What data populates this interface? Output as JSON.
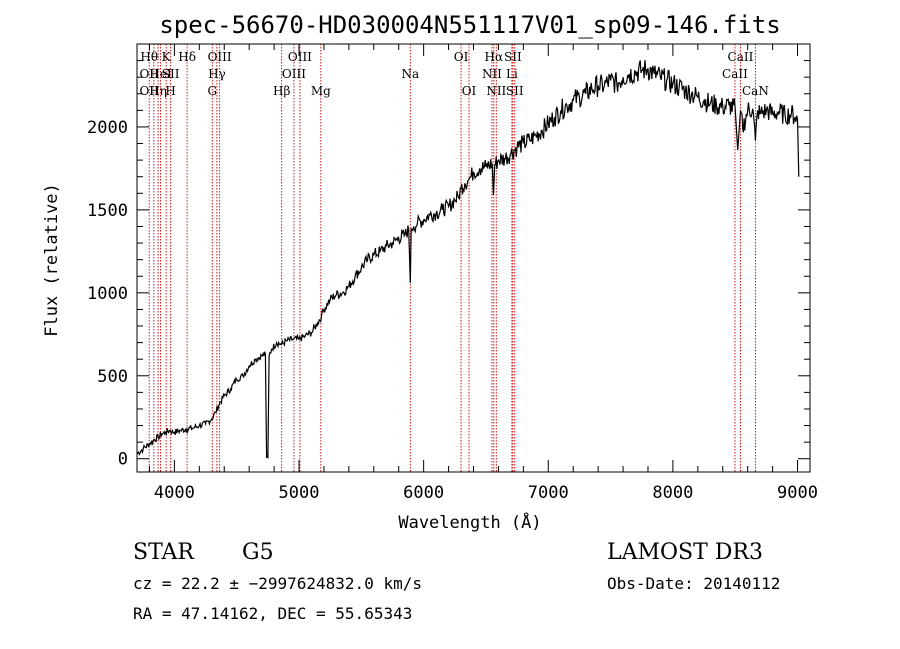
{
  "chart_data": {
    "type": "line",
    "title": "spec-56670-HD030004N551117V01_sp09-146.fits",
    "xlabel": "Wavelength (Å)",
    "ylabel": "Flux (relative)",
    "xlim": [
      3700,
      9100
    ],
    "ylim": [
      -80,
      2500
    ],
    "xticks": [
      4000,
      5000,
      6000,
      7000,
      8000,
      9000
    ],
    "yticks": [
      0,
      500,
      1000,
      1500,
      2000
    ],
    "series": [
      {
        "name": "flux",
        "x": [
          3700,
          3750,
          3800,
          3830,
          3870,
          3900,
          3930,
          3960,
          4000,
          4050,
          4100,
          4150,
          4200,
          4250,
          4300,
          4330,
          4360,
          4400,
          4450,
          4500,
          4550,
          4600,
          4650,
          4700,
          4730,
          4740,
          4750,
          4760,
          4780,
          4820,
          4860,
          4900,
          4950,
          5000,
          5050,
          5100,
          5150,
          5180,
          5200,
          5250,
          5300,
          5350,
          5400,
          5450,
          5500,
          5550,
          5600,
          5650,
          5700,
          5750,
          5800,
          5850,
          5880,
          5893,
          5900,
          5920,
          5950,
          6000,
          6050,
          6100,
          6150,
          6200,
          6250,
          6280,
          6300,
          6330,
          6360,
          6380,
          6400,
          6450,
          6500,
          6550,
          6560,
          6570,
          6600,
          6650,
          6700,
          6750,
          6800,
          6850,
          6900,
          6950,
          7000,
          7050,
          7100,
          7150,
          7200,
          7250,
          7300,
          7350,
          7400,
          7450,
          7500,
          7550,
          7600,
          7650,
          7700,
          7750,
          7800,
          7850,
          7900,
          7950,
          8000,
          8050,
          8100,
          8150,
          8200,
          8250,
          8300,
          8350,
          8400,
          8450,
          8500,
          8520,
          8542,
          8560,
          8600,
          8640,
          8662,
          8680,
          8700,
          8750,
          8800,
          8850,
          8900,
          8950,
          8980,
          9000,
          9010
        ],
        "values": [
          30,
          60,
          90,
          110,
          130,
          150,
          160,
          170,
          160,
          170,
          180,
          185,
          200,
          210,
          240,
          280,
          330,
          380,
          420,
          480,
          500,
          560,
          600,
          620,
          630,
          5,
          10,
          620,
          660,
          700,
          690,
          710,
          720,
          720,
          740,
          760,
          820,
          860,
          900,
          960,
          990,
          1000,
          1040,
          1100,
          1150,
          1200,
          1230,
          1250,
          1280,
          1300,
          1330,
          1350,
          1380,
          1060,
          1390,
          1400,
          1420,
          1440,
          1470,
          1480,
          1500,
          1520,
          1560,
          1580,
          1630,
          1660,
          1680,
          1700,
          1730,
          1750,
          1760,
          1780,
          1590,
          1770,
          1800,
          1810,
          1840,
          1880,
          1900,
          1920,
          1950,
          1980,
          2020,
          2060,
          2100,
          2130,
          2160,
          2180,
          2200,
          2230,
          2250,
          2250,
          2280,
          2260,
          2300,
          2320,
          2330,
          2340,
          2350,
          2320,
          2300,
          2280,
          2260,
          2240,
          2220,
          2200,
          2180,
          2160,
          2140,
          2130,
          2120,
          2130,
          2110,
          1860,
          2100,
          1990,
          2100,
          2110,
          1920,
          2100,
          2080,
          2100,
          2080,
          2090,
          2070,
          2080,
          2060,
          2050,
          1700
        ]
      }
    ],
    "spectral_lines": [
      {
        "wavelength": 3798,
        "row1": "Hθ",
        "row2": "OII",
        "row3": "OII"
      },
      {
        "wavelength": 3835,
        "row1": "",
        "row2": "",
        "row3": ""
      },
      {
        "wavelength": 3869,
        "row1": "",
        "row2": "",
        "row3": "Hη"
      },
      {
        "wavelength": 3889,
        "row1": "",
        "row2": "HeI",
        "row3": ""
      },
      {
        "wavelength": 3934,
        "row1": "K",
        "row2": "",
        "row3": ""
      },
      {
        "wavelength": 3970,
        "row1": "",
        "row2": "SII",
        "row3": "H"
      },
      {
        "wavelength": 4102,
        "row1": "Hδ",
        "row2": "",
        "row3": ""
      },
      {
        "wavelength": 4304,
        "row1": "",
        "row2": "",
        "row3": "G"
      },
      {
        "wavelength": 4341,
        "row1": "",
        "row2": "Hγ",
        "row3": ""
      },
      {
        "wavelength": 4363,
        "row1": "OIII",
        "row2": "",
        "row3": ""
      },
      {
        "wavelength": 4861,
        "row1": "",
        "row2": "",
        "row3": "Hβ"
      },
      {
        "wavelength": 4959,
        "row1": "",
        "row2": "OIII",
        "row3": ""
      },
      {
        "wavelength": 5007,
        "row1": "OIII",
        "row2": "",
        "row3": ""
      },
      {
        "wavelength": 5175,
        "row1": "",
        "row2": "",
        "row3": "Mg"
      },
      {
        "wavelength": 5893,
        "row1": "",
        "row2": "Na",
        "row3": ""
      },
      {
        "wavelength": 6300,
        "row1": "OI",
        "row2": "",
        "row3": ""
      },
      {
        "wavelength": 6364,
        "row1": "",
        "row2": "",
        "row3": "OI"
      },
      {
        "wavelength": 6548,
        "row1": "",
        "row2": "NII",
        "row3": ""
      },
      {
        "wavelength": 6563,
        "row1": "Hα",
        "row2": "",
        "row3": ""
      },
      {
        "wavelength": 6583,
        "row1": "",
        "row2": "",
        "row3": "NII"
      },
      {
        "wavelength": 6708,
        "row1": "",
        "row2": "Li",
        "row3": ""
      },
      {
        "wavelength": 6716,
        "row1": "SII",
        "row2": "",
        "row3": ""
      },
      {
        "wavelength": 6731,
        "row1": "",
        "row2": "",
        "row3": "SII"
      },
      {
        "wavelength": 8498,
        "row1": "",
        "row2": "CaII",
        "row3": ""
      },
      {
        "wavelength": 8542,
        "row1": "CaII",
        "row2": "",
        "row3": ""
      },
      {
        "wavelength": 8662,
        "row1": "",
        "row2": "",
        "row3": "CaN"
      }
    ]
  },
  "info": {
    "object_class": "STAR",
    "subclass": "G5",
    "survey": "LAMOST DR3",
    "cz": "cz = 22.2 ± −2997624832.0 km/s",
    "obs_date": "Obs-Date: 20140112",
    "coords": "RA =  47.14162, DEC =  55.65343"
  },
  "colors": {
    "axis": "#000000",
    "spectrum": "#000000",
    "line_marker": "#cc0000"
  }
}
